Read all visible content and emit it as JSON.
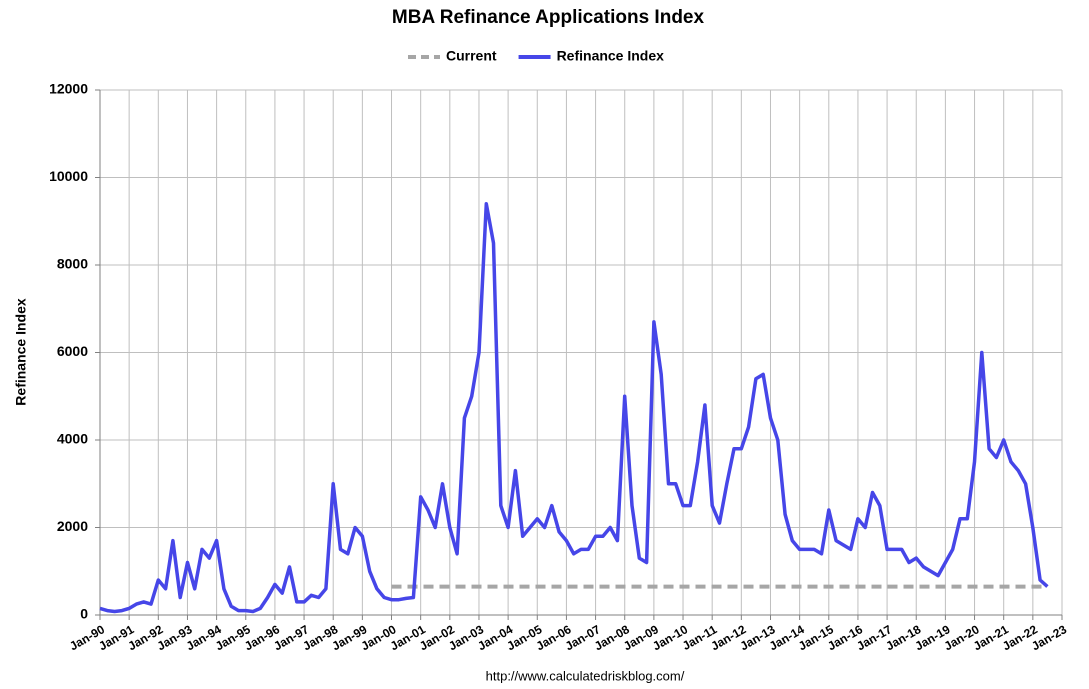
{
  "chart_data": {
    "type": "line",
    "title": "MBA Refinance Applications Index",
    "ylabel": "Refinance Index",
    "source": "http://www.calculatedriskblog.com/",
    "ylim": [
      0,
      12000
    ],
    "yticks": [
      0,
      2000,
      4000,
      6000,
      8000,
      10000,
      12000
    ],
    "xticks": [
      "Jan-90",
      "Jan-91",
      "Jan-92",
      "Jan-93",
      "Jan-94",
      "Jan-95",
      "Jan-96",
      "Jan-97",
      "Jan-98",
      "Jan-99",
      "Jan-00",
      "Jan-01",
      "Jan-02",
      "Jan-03",
      "Jan-04",
      "Jan-05",
      "Jan-06",
      "Jan-07",
      "Jan-08",
      "Jan-09",
      "Jan-10",
      "Jan-11",
      "Jan-12",
      "Jan-13",
      "Jan-14",
      "Jan-15",
      "Jan-16",
      "Jan-17",
      "Jan-18",
      "Jan-19",
      "Jan-20",
      "Jan-21",
      "Jan-22",
      "Jan-23"
    ],
    "grid": true,
    "legend": "top",
    "series": [
      {
        "name": "Current",
        "color": "#a6a6a6",
        "dashed": true,
        "x": [
          "Jan-00",
          "Jul-22"
        ],
        "values": [
          650,
          650
        ]
      },
      {
        "name": "Refinance Index",
        "color": "#4646e8",
        "x": [
          "Jan-90",
          "Apr-90",
          "Jul-90",
          "Oct-90",
          "Jan-91",
          "Apr-91",
          "Jul-91",
          "Oct-91",
          "Jan-92",
          "Apr-92",
          "Jul-92",
          "Oct-92",
          "Jan-93",
          "Apr-93",
          "Jul-93",
          "Oct-93",
          "Jan-94",
          "Apr-94",
          "Jul-94",
          "Oct-94",
          "Jan-95",
          "Apr-95",
          "Jul-95",
          "Oct-95",
          "Jan-96",
          "Apr-96",
          "Jul-96",
          "Oct-96",
          "Jan-97",
          "Apr-97",
          "Jul-97",
          "Oct-97",
          "Jan-98",
          "Apr-98",
          "Jul-98",
          "Oct-98",
          "Jan-99",
          "Apr-99",
          "Jul-99",
          "Oct-99",
          "Jan-00",
          "Apr-00",
          "Jul-00",
          "Oct-00",
          "Jan-01",
          "Apr-01",
          "Jul-01",
          "Oct-01",
          "Jan-02",
          "Apr-02",
          "Jul-02",
          "Oct-02",
          "Jan-03",
          "Apr-03",
          "Jul-03",
          "Oct-03",
          "Jan-04",
          "Apr-04",
          "Jul-04",
          "Oct-04",
          "Jan-05",
          "Apr-05",
          "Jul-05",
          "Oct-05",
          "Jan-06",
          "Apr-06",
          "Jul-06",
          "Oct-06",
          "Jan-07",
          "Apr-07",
          "Jul-07",
          "Oct-07",
          "Jan-08",
          "Apr-08",
          "Jul-08",
          "Oct-08",
          "Jan-09",
          "Apr-09",
          "Jul-09",
          "Oct-09",
          "Jan-10",
          "Apr-10",
          "Jul-10",
          "Oct-10",
          "Jan-11",
          "Apr-11",
          "Jul-11",
          "Oct-11",
          "Jan-12",
          "Apr-12",
          "Jul-12",
          "Oct-12",
          "Jan-13",
          "Apr-13",
          "Jul-13",
          "Oct-13",
          "Jan-14",
          "Apr-14",
          "Jul-14",
          "Oct-14",
          "Jan-15",
          "Apr-15",
          "Jul-15",
          "Oct-15",
          "Jan-16",
          "Apr-16",
          "Jul-16",
          "Oct-16",
          "Jan-17",
          "Apr-17",
          "Jul-17",
          "Oct-17",
          "Jan-18",
          "Apr-18",
          "Jul-18",
          "Oct-18",
          "Jan-19",
          "Apr-19",
          "Jul-19",
          "Oct-19",
          "Jan-20",
          "Apr-20",
          "Jul-20",
          "Oct-20",
          "Jan-21",
          "Apr-21",
          "Jul-21",
          "Oct-21",
          "Jan-22",
          "Apr-22",
          "Jul-22"
        ],
        "values": [
          150,
          100,
          80,
          100,
          150,
          250,
          300,
          250,
          800,
          600,
          1700,
          400,
          1200,
          600,
          1500,
          1300,
          1700,
          600,
          200,
          100,
          100,
          80,
          150,
          400,
          700,
          500,
          1100,
          300,
          300,
          450,
          400,
          600,
          3000,
          1500,
          1400,
          2000,
          1800,
          1000,
          600,
          400,
          350,
          350,
          380,
          400,
          2700,
          2400,
          2000,
          3000,
          2000,
          1400,
          4500,
          5000,
          6000,
          9400,
          8500,
          2500,
          2000,
          3300,
          1800,
          2000,
          2200,
          2000,
          2500,
          1900,
          1700,
          1400,
          1500,
          1500,
          1800,
          1800,
          2000,
          1700,
          5000,
          2500,
          1300,
          1200,
          6700,
          5500,
          3000,
          3000,
          2500,
          2500,
          3500,
          4800,
          2500,
          2100,
          3000,
          3800,
          3800,
          4300,
          5400,
          5500,
          4500,
          4000,
          2300,
          1700,
          1500,
          1500,
          1500,
          1400,
          2400,
          1700,
          1600,
          1500,
          2200,
          2000,
          2800,
          2500,
          1500,
          1500,
          1500,
          1200,
          1300,
          1100,
          1000,
          900,
          1200,
          1500,
          2200,
          2200,
          3500,
          6000,
          3800,
          3600,
          4000,
          3500,
          3300,
          3000,
          2000,
          800,
          650
        ]
      }
    ]
  }
}
